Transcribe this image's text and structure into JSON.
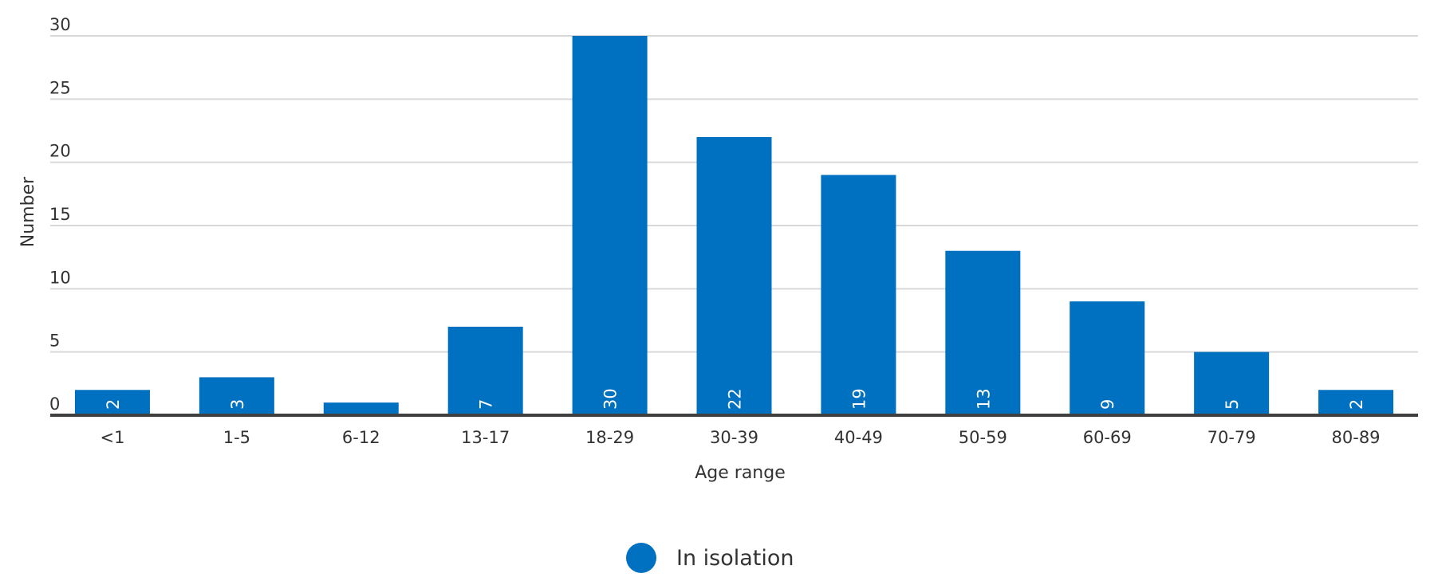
{
  "chart_data": {
    "type": "bar",
    "categories": [
      "<1",
      "1-5",
      "6-12",
      "13-17",
      "18-29",
      "30-39",
      "40-49",
      "50-59",
      "60-69",
      "70-79",
      "80-89"
    ],
    "series": [
      {
        "name": "In isolation",
        "values": [
          2,
          3,
          1,
          7,
          30,
          22,
          19,
          13,
          9,
          5,
          2
        ],
        "color": "#0070c0"
      }
    ],
    "data_labels": [
      "2",
      "3",
      "",
      "7",
      "30",
      "22",
      "19",
      "13",
      "9",
      "5",
      "2"
    ],
    "xlabel": "Age range",
    "ylabel": "Number",
    "ylim": [
      0,
      30
    ],
    "yticks": [
      0,
      5,
      10,
      15,
      20,
      25,
      30
    ],
    "grid": true,
    "legend_position": "bottom-center",
    "colors": {
      "grid": "#d9d9d9",
      "axis": "#404040",
      "text": "#333333",
      "bar_label": "#ffffff"
    }
  }
}
